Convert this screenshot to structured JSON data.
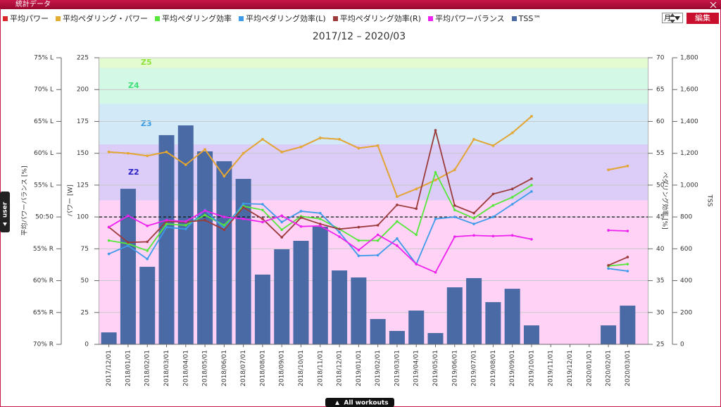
{
  "window_title": "統計データ",
  "controls": {
    "period": "月",
    "edit": "編集"
  },
  "tabs": {
    "side": "user",
    "bottom": "All workouts"
  },
  "chart_data": {
    "type": "bar-line",
    "title": "2017/12 – 2020/03",
    "categories": [
      "2017/12/01",
      "2018/01/01",
      "2018/02/01",
      "2018/03/01",
      "2018/04/01",
      "2018/05/01",
      "2018/06/01",
      "2018/07/01",
      "2018/08/01",
      "2018/09/01",
      "2018/10/01",
      "2018/11/01",
      "2018/12/01",
      "2019/01/01",
      "2019/02/01",
      "2019/03/01",
      "2019/04/01",
      "2019/05/01",
      "2019/06/01",
      "2019/07/01",
      "2019/08/01",
      "2019/09/01",
      "2019/10/01",
      "2019/11/01",
      "2019/12/01",
      "2020/01/01",
      "2020/02/01",
      "2020/03/01"
    ],
    "ylabel": "パワー [W]",
    "ylim": [
      0,
      225
    ],
    "yticks": [
      0,
      25,
      50,
      75,
      100,
      125,
      150,
      175,
      200,
      225
    ],
    "y2label": "ペダリング効率 [%]",
    "y2lim": [
      25,
      70
    ],
    "y2ticks": [
      25,
      30,
      35,
      40,
      45,
      50,
      55,
      60,
      65,
      70
    ],
    "y3label": "TSS",
    "y3lim": [
      0,
      1800
    ],
    "y3ticks": [
      0,
      200,
      400,
      600,
      800,
      {
        "value": 1000,
        "label": "1,000"
      },
      {
        "value": 1200,
        "label": "1,200"
      },
      {
        "value": 1400,
        "label": "1,400"
      },
      {
        "value": 1600,
        "label": "1,600"
      },
      {
        "value": 1800,
        "label": "1,800"
      }
    ],
    "y4label": "平均パワーバランス [%]",
    "y4lim": [
      30,
      75
    ],
    "y4ticks": [
      {
        "value": 30,
        "label": "70% R"
      },
      {
        "value": 35,
        "label": "65% R"
      },
      {
        "value": 40,
        "label": "60% R"
      },
      {
        "value": 45,
        "label": "55% R"
      },
      {
        "value": 50,
        "label": "50:50"
      },
      {
        "value": 55,
        "label": "55% L"
      },
      {
        "value": 60,
        "label": "60% L"
      },
      {
        "value": 65,
        "label": "65% L"
      },
      {
        "value": 70,
        "label": "70% L"
      },
      {
        "value": 75,
        "label": "75% L"
      }
    ],
    "grid": true,
    "reference_line": 100,
    "zones": [
      {
        "lower": 0,
        "upper": 113,
        "color": "#ffd2f6"
      },
      {
        "name": "Z2",
        "lower": 113,
        "upper": 157,
        "color": "#dccdf8",
        "label_color": "#2a1fc4"
      },
      {
        "name": "Z3",
        "lower": 157,
        "upper": 189,
        "color": "#d2eaf8",
        "label_color": "#3a9be0"
      },
      {
        "name": "Z4",
        "lower": 189,
        "upper": 217,
        "color": "#d4f8e6",
        "label_color": "#3ee07a"
      },
      {
        "name": "Z5",
        "lower": 217,
        "upper": 225,
        "color": "#e4fad0",
        "label_color": "#8ee23a"
      }
    ],
    "series": [
      {
        "name": "TSS™",
        "type": "bar",
        "axis": "y3",
        "color": "#4a6aa5",
        "values": [
          75,
          977,
          487,
          1314,
          1375,
          1212,
          1150,
          1039,
          438,
          597,
          650,
          739,
          464,
          420,
          159,
          84,
          212,
          71,
          358,
          416,
          265,
          349,
          119,
          null,
          null,
          null,
          119,
          243
        ]
      },
      {
        "name": "平均パワー",
        "type": "line",
        "axis": "y",
        "color": "#d9262b",
        "values": [
          151,
          150,
          148,
          151,
          141,
          153,
          132,
          150,
          161,
          151,
          155,
          162,
          161,
          154,
          156,
          116,
          122,
          129,
          137,
          161,
          156,
          166,
          179,
          null,
          null,
          null,
          137,
          140
        ]
      },
      {
        "name": "平均ペダリング・パワー",
        "type": "line",
        "axis": "y",
        "color": "#e3ad32",
        "values": [
          151,
          150,
          148,
          151,
          141,
          153,
          132,
          150,
          161,
          151,
          155,
          162,
          161,
          154,
          156,
          116,
          122,
          129,
          137,
          161,
          156,
          166,
          179,
          null,
          null,
          null,
          137,
          140
        ]
      },
      {
        "name": "平均ペダリング効率",
        "type": "line",
        "axis": "y2",
        "color": "#55e83a",
        "values": [
          41.3,
          40.8,
          39.7,
          43.9,
          43.7,
          45.3,
          43.7,
          46.7,
          46.1,
          43.0,
          45.1,
          44.7,
          43.1,
          41.3,
          41.3,
          44.3,
          42.2,
          52.0,
          46.1,
          44.8,
          46.8,
          48.1,
          50.0,
          null,
          null,
          null,
          37.3,
          37.6
        ]
      },
      {
        "name": "平均ペダリング効率(L)",
        "type": "line",
        "axis": "y2",
        "color": "#3d9be9",
        "values": [
          39.2,
          40.5,
          38.4,
          43.4,
          43.1,
          46.1,
          43.2,
          47.1,
          47.0,
          44.2,
          45.9,
          45.6,
          42.6,
          38.9,
          39.0,
          41.6,
          37.6,
          44.7,
          45.0,
          43.9,
          45.0,
          47.0,
          49.0,
          null,
          null,
          null,
          36.9,
          36.5
        ]
      },
      {
        "name": "平均ペダリング効率(R)",
        "type": "line",
        "axis": "y2",
        "color": "#9b3b3b",
        "values": [
          43.4,
          41.0,
          41.1,
          44.3,
          44.2,
          44.5,
          43.0,
          46.5,
          44.7,
          41.8,
          44.9,
          43.9,
          43.1,
          43.4,
          43.7,
          46.9,
          46.3,
          58.6,
          46.8,
          45.6,
          48.6,
          49.4,
          51.0,
          null,
          null,
          null,
          37.4,
          38.7
        ]
      },
      {
        "name": "平均パワーバランス",
        "type": "line",
        "axis": "y4",
        "color": "#ee22ee",
        "values": [
          48.4,
          50.2,
          48.6,
          49.5,
          49.3,
          51.0,
          50.0,
          49.7,
          49.2,
          50.2,
          48.5,
          48.6,
          46.9,
          44.8,
          47.2,
          45.5,
          42.6,
          41.3,
          46.9,
          47.1,
          47.0,
          47.1,
          46.5,
          null,
          null,
          null,
          47.9,
          47.8
        ]
      }
    ],
    "legend_order": [
      1,
      2,
      3,
      4,
      5,
      6,
      0
    ]
  }
}
